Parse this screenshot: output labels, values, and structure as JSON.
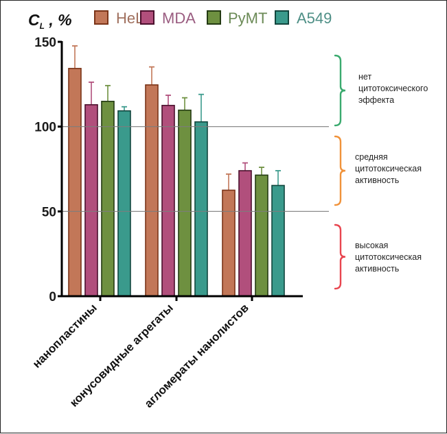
{
  "chart_data": {
    "type": "bar",
    "title": "",
    "ylabel": "C_L , %",
    "ylabel_main": "C",
    "ylabel_sub": "L",
    "ylabel_suffix": " , %",
    "xlabel": "",
    "ylim": [
      0,
      150
    ],
    "yticks": [
      0,
      50,
      100,
      150
    ],
    "gridlines": [
      50,
      100
    ],
    "categories": [
      "нанопластины",
      "конусовидные агрегаты",
      "агломераты нанолистов"
    ],
    "legend_position": "top",
    "series": [
      {
        "name": "HeLa",
        "color": "#c27758",
        "edge": "#7a3418",
        "text_color": "#a0705e",
        "values": [
          134.3,
          124.6,
          62.5
        ],
        "error": [
          13.3,
          10.6,
          9.5
        ]
      },
      {
        "name": "MDA",
        "color": "#b14f7c",
        "edge": "#4a0f2c",
        "text_color": "#9a5c80",
        "values": [
          112.9,
          112.5,
          74.0
        ],
        "error": [
          13.3,
          6.0,
          4.6
        ]
      },
      {
        "name": "PyMT",
        "color": "#6e9040",
        "edge": "#233a12",
        "text_color": "#6b8a56",
        "values": [
          114.9,
          109.7,
          71.4
        ],
        "error": [
          9.3,
          7.3,
          4.6
        ]
      },
      {
        "name": "A549",
        "color": "#3a9a8c",
        "edge": "#11453d",
        "text_color": "#4e8f86",
        "values": [
          109.3,
          102.8,
          65.3
        ],
        "error": [
          2.4,
          16.2,
          8.7
        ]
      }
    ],
    "annotations": [
      {
        "range": [
          100,
          150
        ],
        "color": "#3aaa6e",
        "lines": [
          "нет",
          "цитотоксического",
          "эффекта"
        ]
      },
      {
        "range": [
          50,
          100
        ],
        "color": "#f0923a",
        "lines": [
          "средняя",
          "цитотоксическая",
          "активность"
        ]
      },
      {
        "range": [
          0,
          50
        ],
        "color": "#e8454f",
        "lines": [
          "высокая",
          "цитотоксическая",
          "активность"
        ]
      }
    ]
  }
}
